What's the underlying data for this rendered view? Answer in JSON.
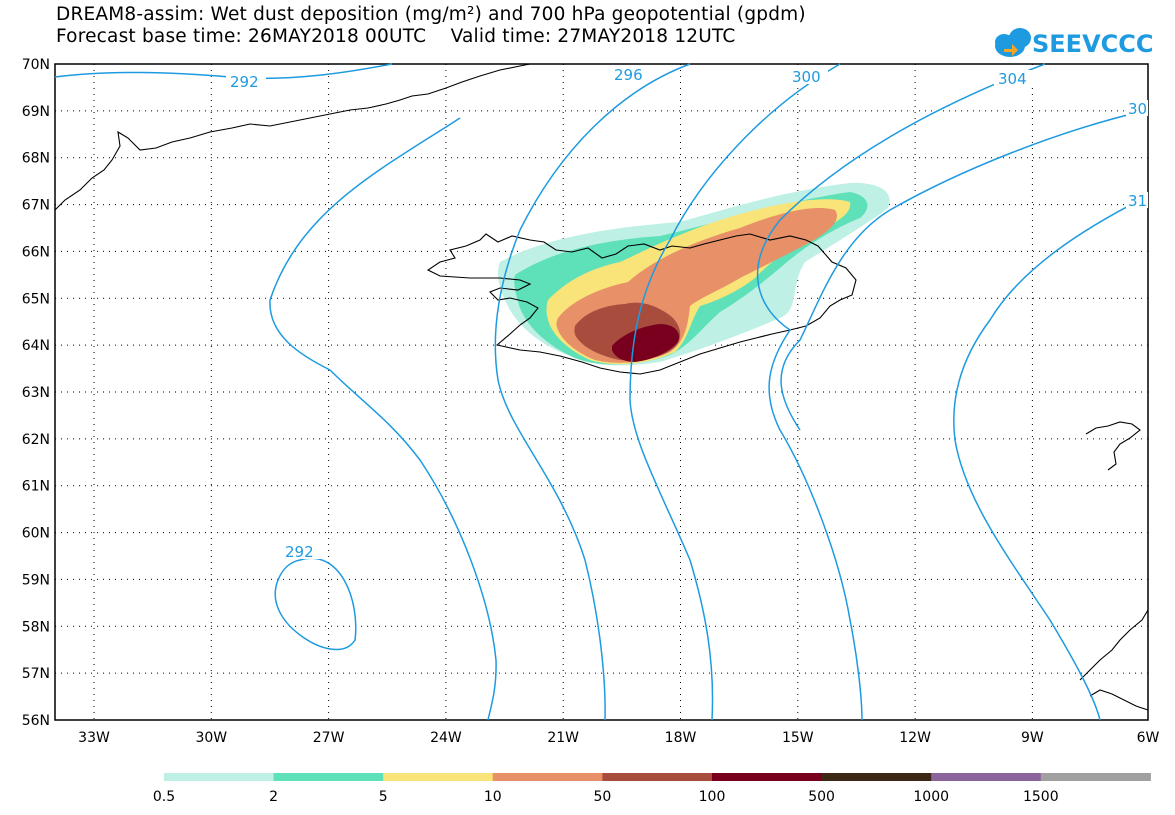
{
  "title_line1": "DREAM8-assim: Wet dust deposition (mg/m²) and 700 hPa geopotential (gpdm)",
  "title_line2": "Forecast base time: 26MAY2018 00UTC    Valid time: 27MAY2018 12UTC",
  "logo_text": "SEEVCCC",
  "map": {
    "lat_labels": [
      "70N",
      "69N",
      "68N",
      "67N",
      "66N",
      "65N",
      "64N",
      "63N",
      "62N",
      "61N",
      "60N",
      "59N",
      "58N",
      "57N",
      "56N"
    ],
    "lon_labels": [
      "33W",
      "30W",
      "27W",
      "24W",
      "21W",
      "18W",
      "15W",
      "12W",
      "9W",
      "6W"
    ],
    "contour_color": "#1e9be0",
    "contour_labels": [
      "292",
      "296",
      "300",
      "304",
      "30",
      "31",
      "292"
    ]
  },
  "legend": {
    "colors": [
      "#bff0e6",
      "#5ee0b8",
      "#f8e478",
      "#e89068",
      "#a84c3e",
      "#78001e",
      "#3c2814",
      "#8c649c",
      "#a0a0a0"
    ],
    "labels": [
      "0.5",
      "2",
      "5",
      "10",
      "50",
      "100",
      "500",
      "1000",
      "1500"
    ]
  }
}
